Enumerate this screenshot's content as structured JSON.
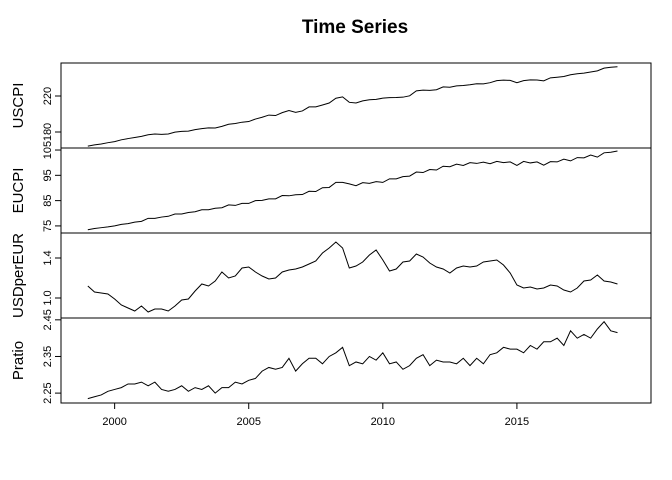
{
  "chart_data": {
    "type": "line",
    "title": "Time Series",
    "xlim": [
      1998,
      2020
    ],
    "xticks": [
      2000,
      2005,
      2010,
      2015
    ],
    "x": [
      1999,
      1999.25,
      1999.5,
      1999.75,
      2000,
      2000.25,
      2000.5,
      2000.75,
      2001,
      2001.25,
      2001.5,
      2001.75,
      2002,
      2002.25,
      2002.5,
      2002.75,
      2003,
      2003.25,
      2003.5,
      2003.75,
      2004,
      2004.25,
      2004.5,
      2004.75,
      2005,
      2005.25,
      2005.5,
      2005.75,
      2006,
      2006.25,
      2006.5,
      2006.75,
      2007,
      2007.25,
      2007.5,
      2007.75,
      2008,
      2008.25,
      2008.5,
      2008.75,
      2009,
      2009.25,
      2009.5,
      2009.75,
      2010,
      2010.25,
      2010.5,
      2010.75,
      2011,
      2011.25,
      2011.5,
      2011.75,
      2012,
      2012.25,
      2012.5,
      2012.75,
      2013,
      2013.25,
      2013.5,
      2013.75,
      2014,
      2014.25,
      2014.5,
      2014.75,
      2015,
      2015.25,
      2015.5,
      2015.75,
      2016,
      2016.25,
      2016.5,
      2016.75,
      2017,
      2017.25,
      2017.5,
      2017.75,
      2018,
      2018.25,
      2018.5,
      2018.75
    ],
    "series": [
      {
        "name": "USCPI",
        "color": "#000000",
        "ylim": [
          162.2,
          256.7
        ],
        "yticks": [
          180,
          220
        ],
        "values": [
          164.3,
          165.7,
          166.7,
          168.1,
          169.3,
          171.3,
          172.7,
          173.9,
          175.1,
          176.9,
          177.7,
          177.4,
          177.8,
          179.8,
          180.7,
          181.0,
          182.6,
          183.7,
          184.6,
          184.5,
          186.2,
          188.6,
          189.4,
          190.9,
          191.6,
          194.4,
          196.4,
          198.8,
          198.3,
          201.5,
          203.9,
          201.8,
          203.4,
          207.9,
          207.9,
          210.0,
          212.2,
          217.5,
          219.0,
          213.0,
          212.2,
          214.6,
          215.8,
          216.3,
          217.6,
          218.2,
          218.3,
          218.7,
          220.2,
          225.7,
          226.5,
          226.2,
          227.0,
          230.1,
          229.8,
          231.3,
          231.7,
          232.5,
          233.6,
          233.5,
          234.8,
          237.1,
          237.6,
          237.4,
          234.8,
          237.1,
          238.0,
          237.8,
          236.9,
          240.2,
          240.9,
          241.7,
          243.6,
          244.7,
          245.5,
          246.7,
          248.0,
          251.0,
          252.0,
          252.5
        ]
      },
      {
        "name": "EUCPI",
        "color": "#000000",
        "ylim": [
          72.2,
          105.8
        ],
        "yticks": [
          75,
          85,
          95,
          105
        ],
        "values": [
          73.5,
          74,
          74.3,
          74.6,
          75,
          75.6,
          75.9,
          76.5,
          76.8,
          78,
          78,
          78.5,
          78.8,
          79.7,
          79.7,
          80.3,
          80.6,
          81.4,
          81.4,
          82,
          82.2,
          83.3,
          83.1,
          83.9,
          83.9,
          85,
          85.1,
          85.7,
          85.7,
          87,
          86.9,
          87.3,
          87.4,
          88.7,
          88.6,
          90.1,
          90.2,
          92.2,
          92.2,
          91.6,
          90.9,
          92.1,
          91.8,
          92.5,
          92.2,
          93.6,
          93.6,
          94.5,
          94.7,
          96.3,
          96.1,
          97.3,
          97.1,
          98.6,
          98.4,
          99.4,
          98.9,
          100,
          99.7,
          100.2,
          99.6,
          100.5,
          100,
          100.3,
          98.9,
          100.5,
          99.9,
          100.3,
          99.0,
          100.4,
          100.3,
          101.4,
          100.7,
          102,
          101.9,
          103,
          102.2,
          103.9,
          104.1,
          104.6
        ]
      },
      {
        "name": "USDperEUR",
        "color": "#000000",
        "ylim": [
          0.8,
          1.65
        ],
        "yticks": [
          {
            "value": 1,
            "label": "1.0"
          },
          1.4
        ],
        "values": [
          1.12,
          1.06,
          1.05,
          1.04,
          0.99,
          0.93,
          0.9,
          0.87,
          0.92,
          0.86,
          0.89,
          0.89,
          0.87,
          0.92,
          0.98,
          0.99,
          1.07,
          1.14,
          1.12,
          1.17,
          1.26,
          1.2,
          1.22,
          1.3,
          1.31,
          1.26,
          1.22,
          1.19,
          1.2,
          1.26,
          1.28,
          1.29,
          1.31,
          1.34,
          1.37,
          1.45,
          1.5,
          1.56,
          1.5,
          1.3,
          1.32,
          1.36,
          1.43,
          1.48,
          1.38,
          1.27,
          1.29,
          1.36,
          1.37,
          1.44,
          1.41,
          1.35,
          1.31,
          1.29,
          1.25,
          1.3,
          1.32,
          1.31,
          1.32,
          1.36,
          1.37,
          1.38,
          1.33,
          1.25,
          1.13,
          1.1,
          1.11,
          1.09,
          1.1,
          1.13,
          1.12,
          1.08,
          1.06,
          1.1,
          1.17,
          1.18,
          1.23,
          1.17,
          1.16,
          1.14
        ]
      },
      {
        "name": "Pratio",
        "color": "#000000",
        "ylim": [
          2.223,
          2.455
        ],
        "yticks": [
          2.25,
          2.35,
          2.45
        ],
        "values": [
          2.235,
          2.24,
          2.245,
          2.255,
          2.26,
          2.265,
          2.275,
          2.275,
          2.28,
          2.27,
          2.28,
          2.26,
          2.255,
          2.26,
          2.27,
          2.255,
          2.265,
          2.26,
          2.27,
          2.25,
          2.265,
          2.265,
          2.28,
          2.275,
          2.285,
          2.29,
          2.31,
          2.32,
          2.315,
          2.32,
          2.345,
          2.31,
          2.33,
          2.345,
          2.345,
          2.33,
          2.35,
          2.36,
          2.375,
          2.325,
          2.335,
          2.33,
          2.35,
          2.34,
          2.36,
          2.33,
          2.335,
          2.315,
          2.325,
          2.345,
          2.355,
          2.325,
          2.34,
          2.335,
          2.335,
          2.33,
          2.345,
          2.325,
          2.345,
          2.33,
          2.355,
          2.36,
          2.375,
          2.37,
          2.37,
          2.36,
          2.38,
          2.37,
          2.39,
          2.39,
          2.4,
          2.38,
          2.42,
          2.4,
          2.41,
          2.4,
          2.425,
          2.445,
          2.42,
          2.415
        ]
      }
    ]
  }
}
